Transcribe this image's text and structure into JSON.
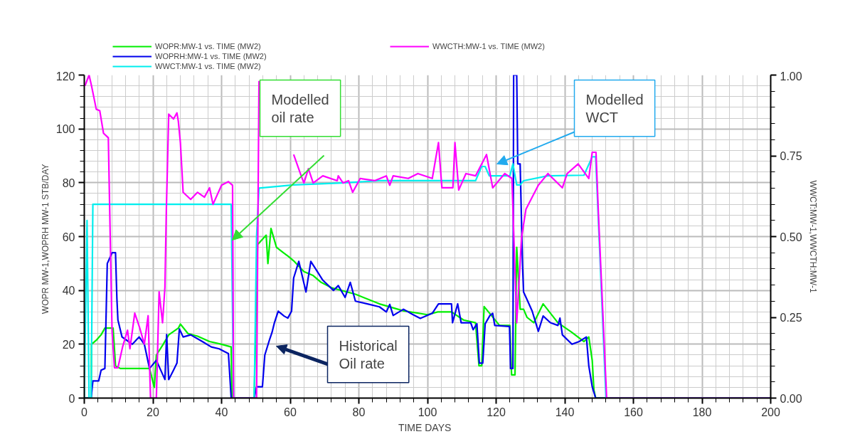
{
  "chart_data": {
    "type": "line",
    "xlabel": "TIME   DAYS",
    "ylabel": "WOPR MW-1,WOPRH MW-1   STB/DAY",
    "y2label": "WWCT:MW-1,WWCTH:MW-1",
    "xlim": [
      0,
      200
    ],
    "xticks": [
      0,
      20,
      40,
      60,
      80,
      100,
      120,
      140,
      160,
      180,
      200
    ],
    "ylim": [
      0,
      120
    ],
    "yticks": [
      0,
      20,
      40,
      60,
      80,
      100,
      120
    ],
    "y2lim": [
      0,
      1
    ],
    "y2ticks": [
      {
        "value": 0,
        "label": "0.00"
      },
      {
        "value": 0.25,
        "label": "0.25"
      },
      {
        "value": 0.5,
        "label": "0.50"
      },
      {
        "value": 0.75,
        "label": "0.75"
      },
      {
        "value": 1,
        "label": "1.00"
      }
    ],
    "grid": true,
    "legend": "top",
    "line_style": "solid",
    "marker": "none",
    "series": [
      {
        "name": "WOPR:MW-1 vs. TIME (MW2)",
        "color": "#00ee00",
        "x": [
          0,
          2,
          2.1,
          3.5,
          4.9,
          6,
          8.4,
          9.1,
          10.5,
          19,
          20.4,
          21,
          23,
          24.6,
          27.4,
          28,
          30.2,
          33,
          36.5,
          40,
          42.8,
          43,
          49.5,
          50.5,
          53,
          53.5,
          54.4,
          56,
          58,
          59.6,
          61,
          64,
          66.7,
          69,
          72,
          79,
          86,
          93,
          100,
          103,
          107,
          110.5,
          114,
          115,
          115.8,
          116.5,
          121,
          124,
          124.5,
          125.5,
          126,
          126.3,
          127,
          128,
          129,
          131,
          133.7,
          138,
          142,
          145.6,
          147,
          148,
          148.5,
          149,
          200
        ],
        "values": [
          0,
          0,
          20,
          21.5,
          23.5,
          26,
          26,
          12,
          11,
          11,
          4,
          16,
          20,
          23.5,
          26,
          27.5,
          24,
          23,
          21,
          20,
          19,
          0,
          0,
          57,
          60.5,
          50,
          63,
          56,
          54,
          52.5,
          51,
          47,
          45.5,
          43,
          41,
          38.6,
          35,
          32.4,
          31,
          32,
          32,
          29,
          28,
          12,
          12,
          34,
          27,
          27,
          8.6,
          8.6,
          56,
          49,
          33,
          33,
          30,
          28,
          35,
          28,
          24.5,
          21,
          22.7,
          14,
          3,
          0,
          0
        ]
      },
      {
        "name": "WOPRH:MW-1 vs. TIME (MW2)",
        "color": "#0000ee",
        "x": [
          0,
          2,
          2.5,
          4.2,
          4.9,
          6,
          6.7,
          8.1,
          9.1,
          9.5,
          9.8,
          11,
          12,
          14,
          16,
          17.5,
          19,
          21,
          23.5,
          24,
          24.6,
          26,
          27,
          27.7,
          28.8,
          31,
          34.4,
          37,
          39.3,
          42,
          42.8,
          49.5,
          50.2,
          51.9,
          52.6,
          54,
          54.7,
          55.4,
          56.5,
          58.2,
          59.3,
          60.4,
          61,
          62.5,
          64.6,
          66,
          67.4,
          69.5,
          72.6,
          74,
          76,
          77.5,
          79,
          82.5,
          86,
          88,
          89,
          90,
          93,
          95.8,
          97.9,
          101.4,
          103.2,
          107,
          107.3,
          108.8,
          109.8,
          112.6,
          113.3,
          114.4,
          115.1,
          116.1,
          116.8,
          118.2,
          119,
          119.6,
          123.9,
          124.2,
          124.9,
          125.1,
          126,
          126.3,
          127,
          127.7,
          128,
          129,
          130.5,
          132.3,
          133.7,
          135.8,
          138,
          138.6,
          139.3,
          142.1,
          144.2,
          146.3,
          147,
          148,
          149,
          200
        ],
        "values": [
          0,
          0,
          6.4,
          6.4,
          10.4,
          11,
          50,
          54,
          54,
          37,
          29,
          22.7,
          21.8,
          20,
          22.7,
          20,
          11,
          14,
          6.9,
          23.6,
          6.9,
          10.4,
          13,
          25.7,
          22.7,
          23.5,
          21,
          19,
          18.3,
          16.5,
          0,
          0,
          4.2,
          4.2,
          16,
          21.8,
          24.4,
          28,
          32.3,
          30.5,
          29.7,
          32.3,
          44.6,
          50.8,
          39.4,
          50.8,
          48,
          43.8,
          40,
          41.8,
          37.4,
          43,
          36,
          35,
          33.9,
          32,
          34.8,
          30.7,
          33,
          31,
          29.6,
          31.5,
          35,
          35,
          28,
          35,
          28,
          28,
          25.4,
          27.6,
          13,
          13,
          27.6,
          30.7,
          31.5,
          27,
          26.6,
          11,
          11,
          120,
          120,
          87,
          87,
          49,
          39.4,
          36.6,
          32.3,
          24.8,
          30.5,
          28,
          27,
          29.7,
          23.5,
          20,
          21,
          22.7,
          12,
          4.2,
          0,
          0
        ]
      },
      {
        "name": "WWCT:MW-1 vs. TIME (MW2)",
        "color": "#00eeee",
        "axis": "y2",
        "x": [
          0,
          0.8,
          1.4,
          2,
          2.5,
          10,
          20,
          30,
          40,
          42.8,
          43.5,
          49.5,
          50.2,
          50.9,
          61,
          75,
          86,
          100,
          114,
          115.8,
          116.8,
          118,
          124,
          124.9,
          126,
          127,
          128,
          135,
          145.6,
          148,
          149,
          152,
          200
        ],
        "values": [
          0,
          0.55,
          0,
          0,
          0.6,
          0.6,
          0.6,
          0.6,
          0.6,
          0.6,
          0,
          0,
          0.5,
          0.65,
          0.66,
          0.666,
          0.673,
          0.673,
          0.673,
          0.717,
          0.717,
          0.688,
          0.688,
          0.725,
          0.66,
          0.66,
          0.673,
          0.688,
          0.69,
          0.747,
          0.747,
          0,
          0
        ]
      },
      {
        "name": "WWCTH:MW-1 vs. TIME (MW2)",
        "color": "#ff00ff",
        "axis": "y2",
        "x": [
          0.2,
          1.4,
          2.1,
          3.5,
          4.5,
          5.6,
          7,
          7.4,
          8.1,
          8.8,
          9.8,
          11.2,
          12.6,
          13.3,
          14.7,
          16.1,
          17.5,
          18.6,
          19.3,
          21,
          21.8,
          22.8,
          23.5,
          23.9,
          24.6,
          26,
          27,
          27.4,
          28,
          28.8,
          31,
          33,
          35,
          36.5,
          37.5,
          40,
          42,
          43.2,
          43.5,
          50.2,
          50.9,
          52,
          61,
          63.2,
          64,
          65.3,
          66.7,
          69.5,
          73.7,
          74,
          75.4,
          77,
          78.2,
          80.4,
          84.6,
          88,
          89,
          90,
          94.4,
          97.2,
          101.4,
          103.2,
          104.2,
          107.4,
          108,
          109.1,
          111.2,
          114,
          117.2,
          119,
          122.5,
          124.6,
          126,
          127.4,
          128.7,
          132.3,
          135.1,
          139.3,
          140.7,
          143.9,
          147,
          148,
          149.1,
          149.8,
          152.2,
          200
        ],
        "values": [
          0.967,
          1,
          0.967,
          0.894,
          0.89,
          0.82,
          0.806,
          0.585,
          0.204,
          0.094,
          0.094,
          0.16,
          0.21,
          0.153,
          0.263,
          0.219,
          0.167,
          0.255,
          0,
          0,
          0.329,
          0.233,
          0.343,
          0.578,
          0.879,
          0.864,
          0.883,
          0.857,
          0.791,
          0.637,
          0.615,
          0.637,
          0.622,
          0.651,
          0.6,
          0.659,
          0.67,
          0.659,
          0,
          0,
          0.982,
          null,
          0.754,
          0.688,
          0.666,
          0.71,
          0.666,
          0.688,
          0.673,
          0.688,
          0.666,
          0.673,
          0.637,
          0.68,
          0.673,
          0.688,
          0.659,
          0.688,
          0.68,
          0.695,
          0.68,
          0.791,
          0.651,
          0.651,
          0.791,
          0.644,
          0.695,
          0.688,
          0.754,
          0.651,
          0.695,
          0.68,
          0.233,
          0.497,
          0.585,
          0.659,
          0.695,
          0.651,
          0.695,
          0.725,
          0.68,
          0.761,
          0.761,
          0.571,
          0,
          0
        ]
      }
    ],
    "annotations": [
      "Modelled\noil rate",
      "Modelled\nWCT",
      "Historical\nOil rate"
    ]
  }
}
